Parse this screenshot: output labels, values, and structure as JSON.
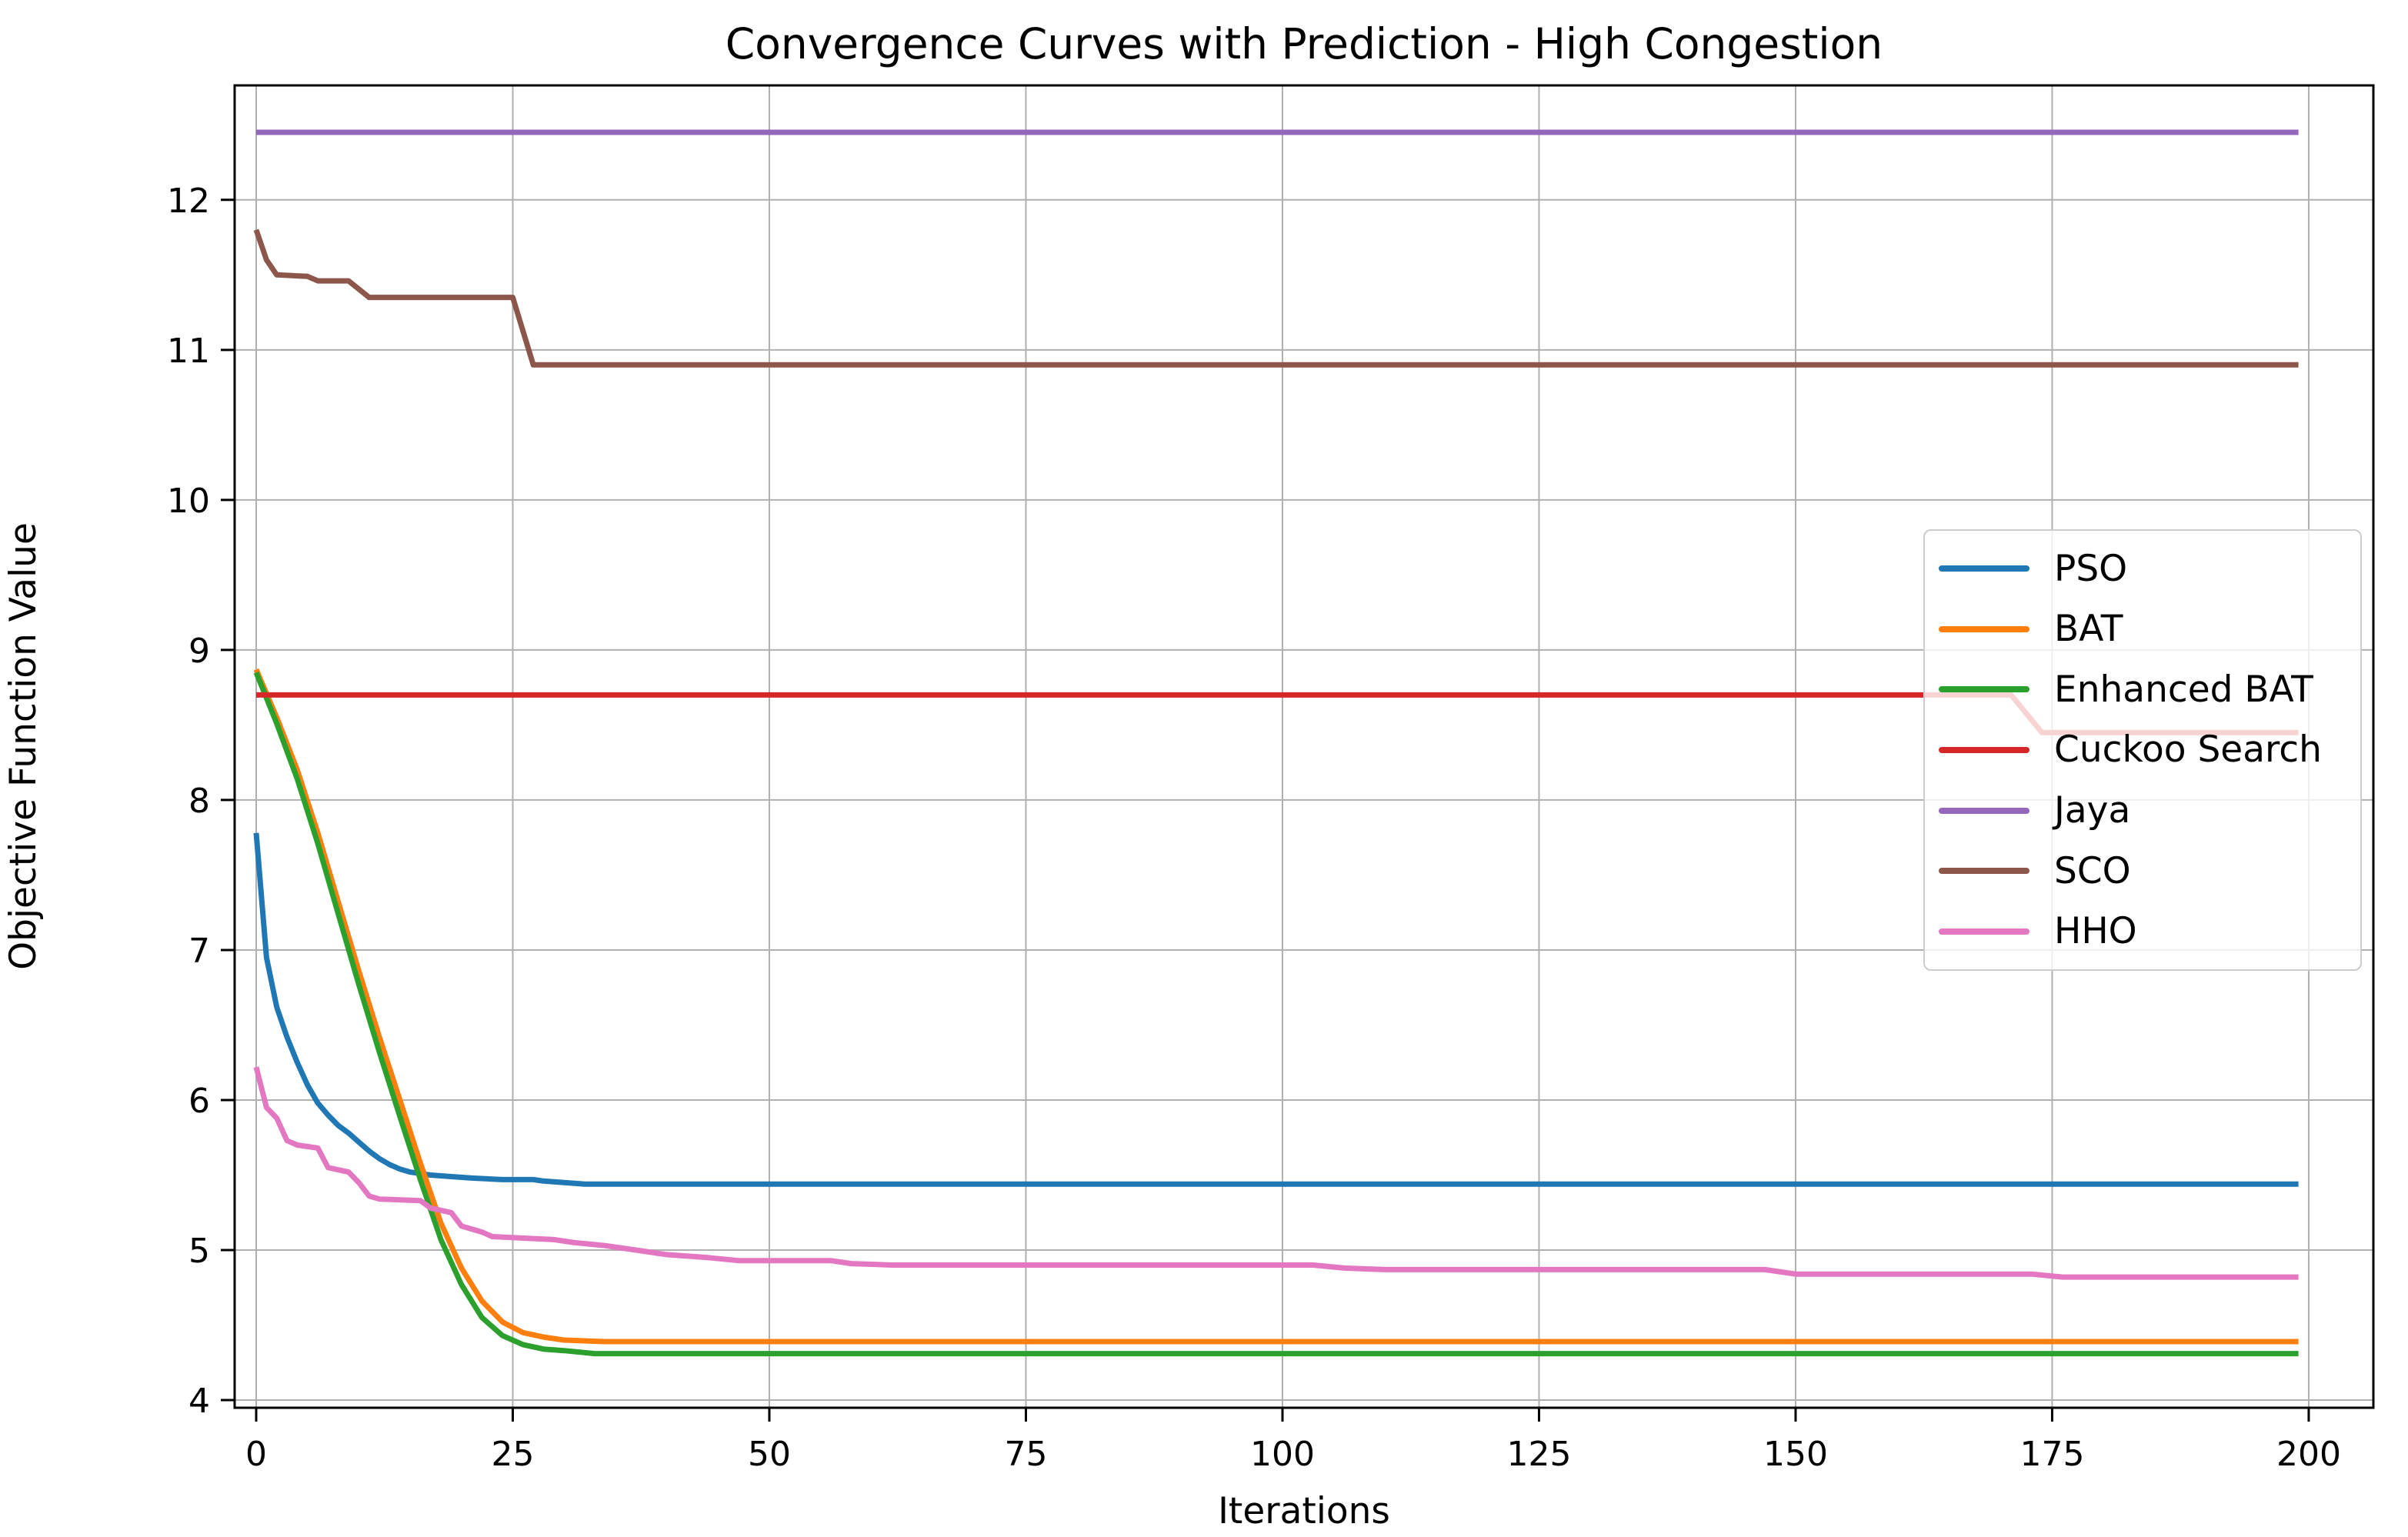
{
  "chart_data": {
    "type": "line",
    "title": "Convergence Curves with Prediction - High Congestion",
    "xlabel": "Iterations",
    "ylabel": "Objective Function Value",
    "xlim": [
      -2.1,
      206.3
    ],
    "ylim": [
      3.949,
      12.763
    ],
    "x_ticks": [
      0,
      25,
      50,
      75,
      100,
      125,
      150,
      175,
      200
    ],
    "y_ticks": [
      4,
      5,
      6,
      7,
      8,
      9,
      10,
      11,
      12
    ],
    "grid": true,
    "grid_color": "#b0b0b0",
    "spine_color": "#000000",
    "legend_position": "center right",
    "series": [
      {
        "name": "PSO",
        "color": "#1f77b4",
        "points": [
          [
            0,
            7.78
          ],
          [
            1,
            6.95
          ],
          [
            2,
            6.62
          ],
          [
            3,
            6.42
          ],
          [
            4,
            6.25
          ],
          [
            5,
            6.1
          ],
          [
            6,
            5.98
          ],
          [
            7,
            5.9
          ],
          [
            8,
            5.83
          ],
          [
            9,
            5.78
          ],
          [
            10,
            5.72
          ],
          [
            11,
            5.66
          ],
          [
            12,
            5.61
          ],
          [
            13,
            5.57
          ],
          [
            14,
            5.54
          ],
          [
            15,
            5.52
          ],
          [
            16,
            5.51
          ],
          [
            17,
            5.5
          ],
          [
            19,
            5.49
          ],
          [
            21,
            5.48
          ],
          [
            24,
            5.47
          ],
          [
            27,
            5.47
          ],
          [
            28,
            5.46
          ],
          [
            30,
            5.45
          ],
          [
            32,
            5.44
          ],
          [
            199,
            5.44
          ]
        ]
      },
      {
        "name": "BAT",
        "color": "#ff7f0e",
        "points": [
          [
            0,
            8.87
          ],
          [
            2,
            8.55
          ],
          [
            4,
            8.2
          ],
          [
            6,
            7.78
          ],
          [
            8,
            7.32
          ],
          [
            10,
            6.86
          ],
          [
            12,
            6.42
          ],
          [
            14,
            6.0
          ],
          [
            16,
            5.58
          ],
          [
            18,
            5.18
          ],
          [
            20,
            4.88
          ],
          [
            22,
            4.66
          ],
          [
            24,
            4.52
          ],
          [
            26,
            4.45
          ],
          [
            28,
            4.42
          ],
          [
            30,
            4.4
          ],
          [
            34,
            4.39
          ],
          [
            199,
            4.39
          ]
        ]
      },
      {
        "name": "Enhanced BAT",
        "color": "#2ca02c",
        "points": [
          [
            0,
            8.85
          ],
          [
            2,
            8.51
          ],
          [
            4,
            8.14
          ],
          [
            6,
            7.71
          ],
          [
            8,
            7.24
          ],
          [
            10,
            6.77
          ],
          [
            12,
            6.32
          ],
          [
            14,
            5.89
          ],
          [
            16,
            5.47
          ],
          [
            18,
            5.07
          ],
          [
            20,
            4.77
          ],
          [
            22,
            4.55
          ],
          [
            24,
            4.43
          ],
          [
            26,
            4.37
          ],
          [
            28,
            4.34
          ],
          [
            30,
            4.33
          ],
          [
            33,
            4.31
          ],
          [
            199,
            4.31
          ]
        ]
      },
      {
        "name": "Cuckoo Search",
        "color": "#d62728",
        "points": [
          [
            0,
            8.7
          ],
          [
            171,
            8.7
          ],
          [
            174,
            8.45
          ],
          [
            199,
            8.45
          ]
        ]
      },
      {
        "name": "Jaya",
        "color": "#9467bd",
        "points": [
          [
            0,
            12.45
          ],
          [
            199,
            12.45
          ]
        ]
      },
      {
        "name": "SCO",
        "color": "#8c564b",
        "points": [
          [
            0,
            11.8
          ],
          [
            1,
            11.6
          ],
          [
            2,
            11.5
          ],
          [
            5,
            11.49
          ],
          [
            6,
            11.46
          ],
          [
            9,
            11.46
          ],
          [
            11,
            11.35
          ],
          [
            25,
            11.35
          ],
          [
            27,
            10.9
          ],
          [
            199,
            10.9
          ]
        ]
      },
      {
        "name": "HHO",
        "color": "#e377c2",
        "points": [
          [
            0,
            6.22
          ],
          [
            1,
            5.95
          ],
          [
            2,
            5.88
          ],
          [
            3,
            5.73
          ],
          [
            4,
            5.7
          ],
          [
            6,
            5.68
          ],
          [
            7,
            5.55
          ],
          [
            9,
            5.52
          ],
          [
            10,
            5.45
          ],
          [
            11,
            5.36
          ],
          [
            12,
            5.34
          ],
          [
            16,
            5.33
          ],
          [
            17,
            5.28
          ],
          [
            19,
            5.25
          ],
          [
            20,
            5.16
          ],
          [
            22,
            5.12
          ],
          [
            23,
            5.09
          ],
          [
            29,
            5.07
          ],
          [
            31,
            5.05
          ],
          [
            34,
            5.03
          ],
          [
            37,
            5.0
          ],
          [
            40,
            4.97
          ],
          [
            44,
            4.95
          ],
          [
            47,
            4.93
          ],
          [
            56,
            4.93
          ],
          [
            58,
            4.91
          ],
          [
            62,
            4.9
          ],
          [
            103,
            4.9
          ],
          [
            106,
            4.88
          ],
          [
            110,
            4.87
          ],
          [
            147,
            4.87
          ],
          [
            150,
            4.84
          ],
          [
            173,
            4.84
          ],
          [
            176,
            4.82
          ],
          [
            199,
            4.82
          ]
        ]
      }
    ]
  }
}
